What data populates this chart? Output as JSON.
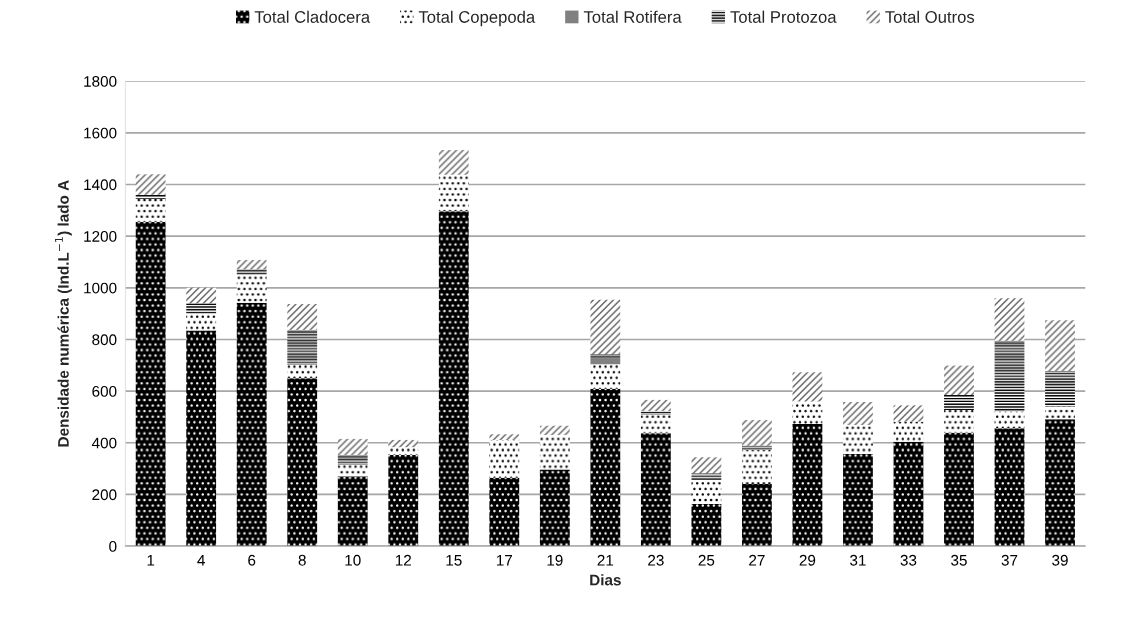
{
  "chart_data": {
    "type": "bar",
    "stacked": true,
    "categories": [
      "1",
      "4",
      "6",
      "8",
      "10",
      "12",
      "15",
      "17",
      "19",
      "21",
      "23",
      "25",
      "27",
      "29",
      "31",
      "33",
      "35",
      "37",
      "39"
    ],
    "series": [
      {
        "name": "Total Cladocera",
        "color": "#000000",
        "values": [
          1255,
          835,
          942,
          650,
          270,
          353,
          1296,
          265,
          297,
          609,
          437,
          163,
          240,
          473,
          357,
          404,
          439,
          456,
          491
        ]
      },
      {
        "name": "Total Copepoda",
        "color": "#ffffff",
        "values": [
          90,
          65,
          108,
          52,
          45,
          30,
          142,
          146,
          133,
          95,
          71,
          93,
          132,
          87,
          112,
          78,
          88,
          65,
          49
        ]
      },
      {
        "name": "Total Rotifera",
        "color": "#808080",
        "values": [
          0,
          0,
          0,
          0,
          0,
          0,
          0,
          0,
          0,
          24,
          0,
          0,
          0,
          0,
          0,
          0,
          0,
          0,
          0
        ]
      },
      {
        "name": "Total Protozoa",
        "color": "#ffffff",
        "values": [
          15,
          40,
          22,
          135,
          38,
          0,
          0,
          0,
          0,
          15,
          15,
          26,
          17,
          0,
          0,
          0,
          58,
          274,
          138
        ]
      },
      {
        "name": "Total Outros",
        "color": "#ffffff",
        "values": [
          80,
          60,
          36,
          100,
          62,
          28,
          95,
          22,
          36,
          211,
          43,
          62,
          99,
          113,
          89,
          63,
          114,
          165,
          196
        ]
      }
    ],
    "ylim": [
      0,
      1800
    ],
    "yticks": [
      0,
      200,
      400,
      600,
      800,
      1000,
      1200,
      1400,
      1600,
      1800
    ],
    "xlabel": "Dias",
    "ylabel": "Densidade numérica (Ind.L$^{−1}$) lado A",
    "grid": "y",
    "legend": "top"
  }
}
